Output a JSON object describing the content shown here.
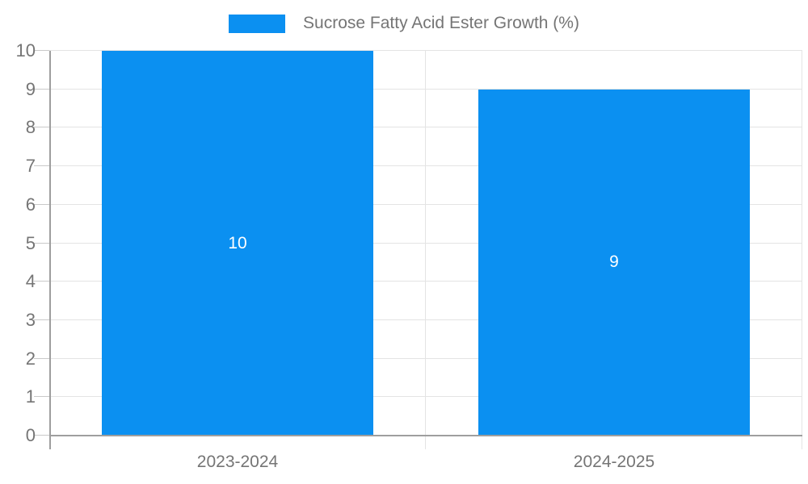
{
  "chart_data": {
    "type": "bar",
    "title": "Sucrose Fatty Acid Ester Growth (%)",
    "categories": [
      "2023-2024",
      "2024-2025"
    ],
    "values": [
      10,
      9
    ],
    "xlabel": "",
    "ylabel": "",
    "ylim": [
      0,
      10
    ],
    "yticks": [
      0,
      1,
      2,
      3,
      4,
      5,
      6,
      7,
      8,
      9,
      10
    ],
    "grid": true,
    "legend_position": "top-center",
    "colors": {
      "bar": "#0b90f1",
      "bar_value_text": "#ffffff",
      "axis_text": "#757575",
      "legend_text": "#757575",
      "gridline": "#e4e4e4",
      "axis_line": "#9e9e9e",
      "background": "#ffffff"
    }
  }
}
